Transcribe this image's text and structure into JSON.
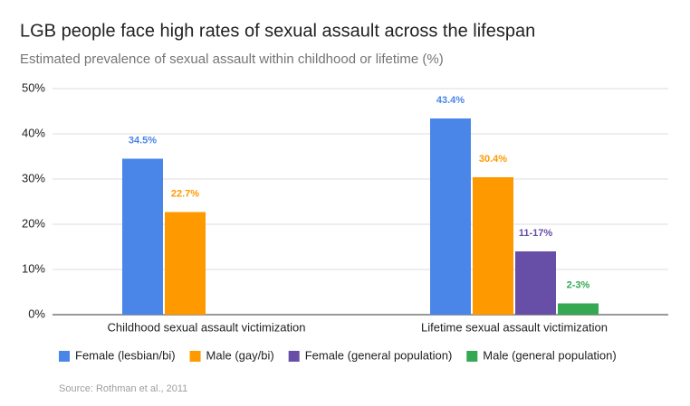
{
  "chart_data": {
    "type": "bar",
    "title": "LGB people face high rates of sexual assault across the lifespan",
    "subtitle": "Estimated prevalence of sexual assault within childhood or lifetime (%)",
    "source": "Source: Rothman et al., 2011",
    "categories": [
      "Childhood sexual assault victimization",
      "Lifetime sexual assault victimization"
    ],
    "series": [
      {
        "name": "Female (lesbian/bi)",
        "color": "#4a86e8",
        "values": [
          34.5,
          43.4
        ],
        "value_labels": [
          "34.5%",
          "43.4%"
        ]
      },
      {
        "name": "Male (gay/bi)",
        "color": "#ff9900",
        "values": [
          22.7,
          30.4
        ],
        "value_labels": [
          "22.7%",
          "30.4%"
        ]
      },
      {
        "name": "Female (general population)",
        "color": "#674ea7",
        "values": [
          null,
          14
        ],
        "value_labels": [
          null,
          "11-17%"
        ]
      },
      {
        "name": "Male (general population)",
        "color": "#34a853",
        "values": [
          null,
          2.5
        ],
        "value_labels": [
          null,
          "2-3%"
        ]
      }
    ],
    "ylim": [
      0,
      50
    ],
    "yticks": [
      {
        "value": 0,
        "label": "0%"
      },
      {
        "value": 10,
        "label": "10%"
      },
      {
        "value": 20,
        "label": "20%"
      },
      {
        "value": 30,
        "label": "30%"
      },
      {
        "value": 40,
        "label": "40%"
      },
      {
        "value": 50,
        "label": "50%"
      }
    ],
    "grid": true,
    "legend": "bottom"
  }
}
